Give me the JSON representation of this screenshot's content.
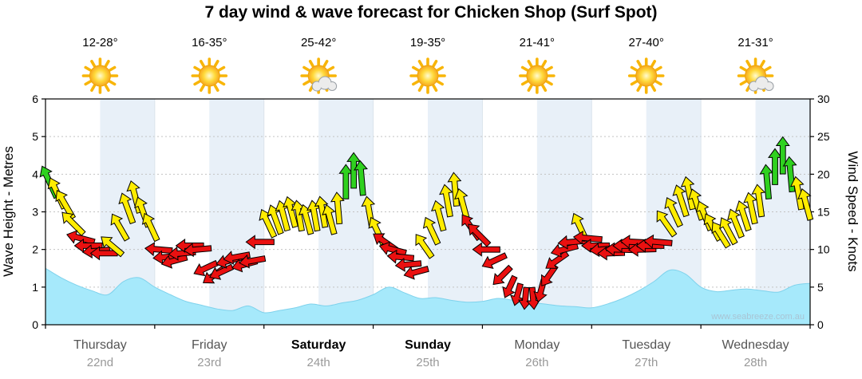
{
  "title": "7 day wind & wave forecast for Chicken Shop  (Surf Spot)",
  "watermark": "www.seabreeze.com.au",
  "left_axis": {
    "label": "Wave Height - Metres",
    "ticks": [
      0,
      1,
      2,
      3,
      4,
      5,
      6
    ]
  },
  "right_axis": {
    "label": "Wind Speed - Knots",
    "ticks": [
      0,
      5,
      10,
      15,
      20,
      25,
      30
    ]
  },
  "days": [
    {
      "name": "Thursday",
      "date": "22nd",
      "temp": "12-28°",
      "icon": "sun",
      "weekend": false
    },
    {
      "name": "Friday",
      "date": "23rd",
      "temp": "16-35°",
      "icon": "sun",
      "weekend": false
    },
    {
      "name": "Saturday",
      "date": "24th",
      "temp": "25-42°",
      "icon": "sun-cloud",
      "weekend": true
    },
    {
      "name": "Sunday",
      "date": "25th",
      "temp": "19-35°",
      "icon": "sun",
      "weekend": true
    },
    {
      "name": "Monday",
      "date": "26th",
      "temp": "21-41°",
      "icon": "sun",
      "weekend": false
    },
    {
      "name": "Tuesday",
      "date": "27th",
      "temp": "27-40°",
      "icon": "sun",
      "weekend": false
    },
    {
      "name": "Wednesday",
      "date": "28th",
      "temp": "21-31°",
      "icon": "sun-cloud",
      "weekend": false
    }
  ],
  "chart_data": {
    "type": "area",
    "title": "7 day wind & wave forecast for Chicken Shop (Surf Spot)",
    "xlabel": "",
    "ylabel_left": "Wave Height - Metres",
    "ylabel_right": "Wind Speed - Knots",
    "ylim_wave_m": [
      0,
      6
    ],
    "ylim_wind_knots": [
      0,
      30
    ],
    "grid": true,
    "wave_height_m": [
      1.5,
      1.25,
      1.05,
      0.9,
      0.8,
      1.15,
      1.25,
      1.0,
      0.8,
      0.62,
      0.52,
      0.42,
      0.38,
      0.5,
      0.32,
      0.38,
      0.45,
      0.55,
      0.5,
      0.58,
      0.65,
      0.8,
      1.0,
      0.85,
      0.7,
      0.72,
      0.65,
      0.6,
      0.62,
      0.7,
      0.65,
      0.6,
      0.55,
      0.5,
      0.48,
      0.45,
      0.55,
      0.7,
      0.9,
      1.15,
      1.45,
      1.35,
      1.0,
      0.88,
      0.92,
      0.95,
      0.9,
      0.87,
      1.05,
      1.1
    ],
    "wind": {
      "arrows_per_day": 14,
      "colors": {
        "g": "#2fd11f",
        "y": "#ffec00",
        "r": "#ea1010"
      },
      "days": [
        [
          [
            19,
            -25,
            "g"
          ],
          [
            17.5,
            -25,
            "y"
          ],
          [
            16,
            -30,
            "y"
          ],
          [
            13.5,
            -45,
            "y"
          ],
          [
            11.5,
            -75,
            "r"
          ],
          [
            10.5,
            -90,
            "r"
          ],
          [
            9.8,
            -95,
            "r"
          ],
          [
            9.5,
            -90,
            "r"
          ],
          [
            10.5,
            -50,
            "y"
          ],
          [
            13,
            -30,
            "y"
          ],
          [
            15.5,
            -20,
            "y"
          ],
          [
            17,
            -15,
            "y"
          ],
          [
            15,
            -20,
            "y"
          ],
          [
            13,
            -25,
            "y"
          ]
        ],
        [
          [
            10,
            -85,
            "r"
          ],
          [
            9,
            -95,
            "r"
          ],
          [
            8.5,
            -105,
            "r"
          ],
          [
            9.5,
            -95,
            "r"
          ],
          [
            10.5,
            -90,
            "r"
          ],
          [
            10,
            -95,
            "r"
          ],
          [
            7.5,
            -115,
            "r"
          ],
          [
            6.5,
            -125,
            "r"
          ],
          [
            7,
            -115,
            "r"
          ],
          [
            8.5,
            -105,
            "r"
          ],
          [
            9,
            -100,
            "r"
          ],
          [
            8,
            -105,
            "r"
          ],
          [
            8.5,
            -100,
            "r"
          ],
          [
            11,
            -90,
            "r"
          ]
        ],
        [
          [
            13.5,
            -25,
            "y"
          ],
          [
            14,
            -20,
            "y"
          ],
          [
            14.5,
            -15,
            "y"
          ],
          [
            15,
            -15,
            "y"
          ],
          [
            14.5,
            -10,
            "y"
          ],
          [
            14,
            -15,
            "y"
          ],
          [
            14.5,
            -10,
            "y"
          ],
          [
            15,
            -10,
            "y"
          ],
          [
            14,
            -15,
            "y"
          ],
          [
            15.5,
            -5,
            "y"
          ],
          [
            19,
            0,
            "g"
          ],
          [
            20.5,
            0,
            "g"
          ],
          [
            19.5,
            -5,
            "g"
          ],
          [
            15,
            -10,
            "y"
          ]
        ],
        [
          [
            12.5,
            -25,
            "y"
          ],
          [
            11,
            -55,
            "r"
          ],
          [
            10,
            -75,
            "r"
          ],
          [
            9,
            -85,
            "r"
          ],
          [
            8,
            -95,
            "r"
          ],
          [
            7,
            -105,
            "r"
          ],
          [
            10.5,
            -35,
            "y"
          ],
          [
            12.5,
            -25,
            "y"
          ],
          [
            14.5,
            -15,
            "y"
          ],
          [
            16.5,
            -10,
            "y"
          ],
          [
            18,
            -5,
            "y"
          ],
          [
            16,
            -15,
            "y"
          ],
          [
            13,
            -35,
            "r"
          ],
          [
            12,
            -45,
            "r"
          ]
        ],
        [
          [
            10,
            -90,
            "r"
          ],
          [
            8.5,
            -115,
            "r"
          ],
          [
            6.5,
            -135,
            "r"
          ],
          [
            5,
            -155,
            "r"
          ],
          [
            4,
            -165,
            "r"
          ],
          [
            3.5,
            -175,
            "r"
          ],
          [
            3.5,
            175,
            "r"
          ],
          [
            4.5,
            -165,
            "r"
          ],
          [
            6.5,
            -145,
            "r"
          ],
          [
            8.5,
            -125,
            "r"
          ],
          [
            10,
            -105,
            "r"
          ],
          [
            11,
            -95,
            "r"
          ],
          [
            13,
            -25,
            "y"
          ],
          [
            11.5,
            -85,
            "r"
          ]
        ],
        [
          [
            10.5,
            -90,
            "r"
          ],
          [
            10,
            -95,
            "r"
          ],
          [
            9.5,
            -92,
            "r"
          ],
          [
            10,
            -88,
            "r"
          ],
          [
            10.5,
            -90,
            "r"
          ],
          [
            11,
            -87,
            "r"
          ],
          [
            10,
            -92,
            "r"
          ],
          [
            10.5,
            -90,
            "r"
          ],
          [
            11,
            -85,
            "r"
          ],
          [
            13.5,
            -35,
            "y"
          ],
          [
            15,
            -25,
            "y"
          ],
          [
            16.5,
            -18,
            "y"
          ],
          [
            17.5,
            -12,
            "y"
          ],
          [
            16,
            -18,
            "y"
          ]
        ],
        [
          [
            14.5,
            -22,
            "y"
          ],
          [
            13,
            -28,
            "y"
          ],
          [
            12,
            -32,
            "y"
          ],
          [
            12.5,
            -28,
            "y"
          ],
          [
            13.5,
            -22,
            "y"
          ],
          [
            14.5,
            -18,
            "y"
          ],
          [
            15.5,
            -12,
            "y"
          ],
          [
            16.5,
            -8,
            "y"
          ],
          [
            19,
            -5,
            "g"
          ],
          [
            21,
            0,
            "g"
          ],
          [
            22.5,
            0,
            "g"
          ],
          [
            20,
            -5,
            "g"
          ],
          [
            17.5,
            -10,
            "y"
          ],
          [
            16,
            -15,
            "y"
          ]
        ]
      ]
    }
  },
  "colors": {
    "wave_fill": "#a6e9fb",
    "wave_stroke": "#7fd2ec",
    "stripe": "#e8f0f8",
    "grid": "#c2c2c2",
    "day_boundary": "#dbe4ec",
    "axis": "#000000",
    "day_label": "#555555",
    "date_label": "#999999",
    "weekend_label": "#000000",
    "watermark": "#a8c4d4",
    "sun_ray": "#f8b508",
    "sun_edge": "#eda309",
    "cloud_fill": "#ececec",
    "cloud_edge": "#9aa0a6"
  }
}
